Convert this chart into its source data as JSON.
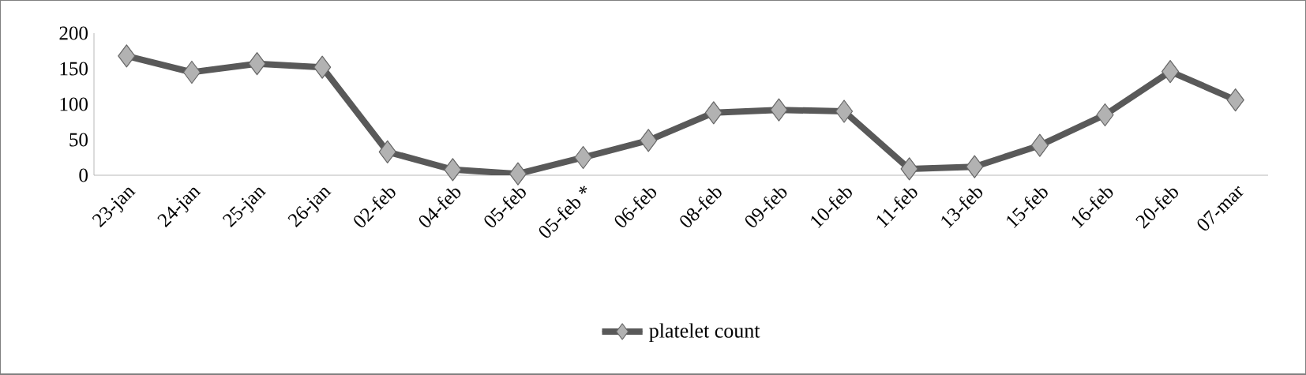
{
  "chart_data": {
    "type": "line",
    "categories": [
      "23-jan",
      "24-jan",
      "25-jan",
      "26-jan",
      "02-feb",
      "04-feb",
      "05-feb",
      "05-feb *",
      "06-feb",
      "08-feb",
      "09-feb",
      "10-feb",
      "11-feb",
      "13-feb",
      "15-feb",
      "16-feb",
      "20-feb",
      "07-mar"
    ],
    "series": [
      {
        "name": "platelet count",
        "color": "#595959",
        "values": [
          168,
          145,
          157,
          152,
          33,
          8,
          2,
          25,
          49,
          88,
          92,
          90,
          9,
          12,
          42,
          85,
          146,
          106
        ]
      }
    ],
    "ylim": [
      0,
      200
    ],
    "yticks": [
      0,
      50,
      100,
      150,
      200
    ],
    "grid": false,
    "legend": "bottom",
    "marker": "diamond",
    "line_style": "solid"
  }
}
